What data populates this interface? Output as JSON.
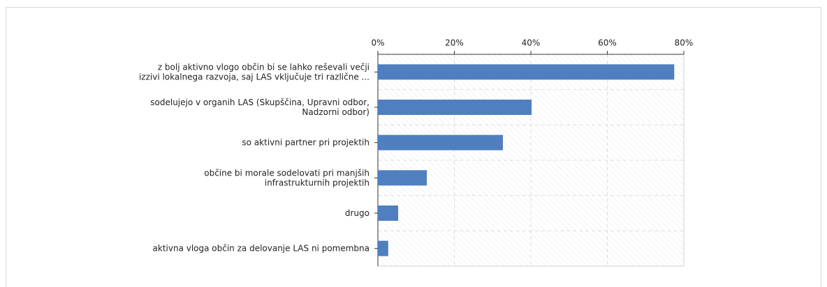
{
  "chart_data": {
    "type": "barh",
    "categories": [
      "z bolj aktivno vlogo občin bi se lahko reševali večji\nizzivi lokalnega razvoja, saj LAS vključuje tri različne ...",
      "sodelujejo v organih LAS (Skupščina, Upravni odbor,\nNadzorni odbor)",
      "so aktivni partner pri projektih",
      "občine bi morale sodelovati pri manjših\ninfrastrukturnih projektih",
      "drugo",
      "aktivna vloga občin za delovanje LAS ni pomembna"
    ],
    "values": [
      77.5,
      40.2,
      32.7,
      12.8,
      5.3,
      2.7
    ],
    "color": "#4f7fbf",
    "xlim": [
      0,
      80
    ],
    "xticks": [
      {
        "value": 0,
        "label": "0%"
      },
      {
        "value": 20,
        "label": "20%"
      },
      {
        "value": 40,
        "label": "40%"
      },
      {
        "value": 60,
        "label": "60%"
      },
      {
        "value": 80,
        "label": "80%"
      }
    ],
    "grid": true
  }
}
